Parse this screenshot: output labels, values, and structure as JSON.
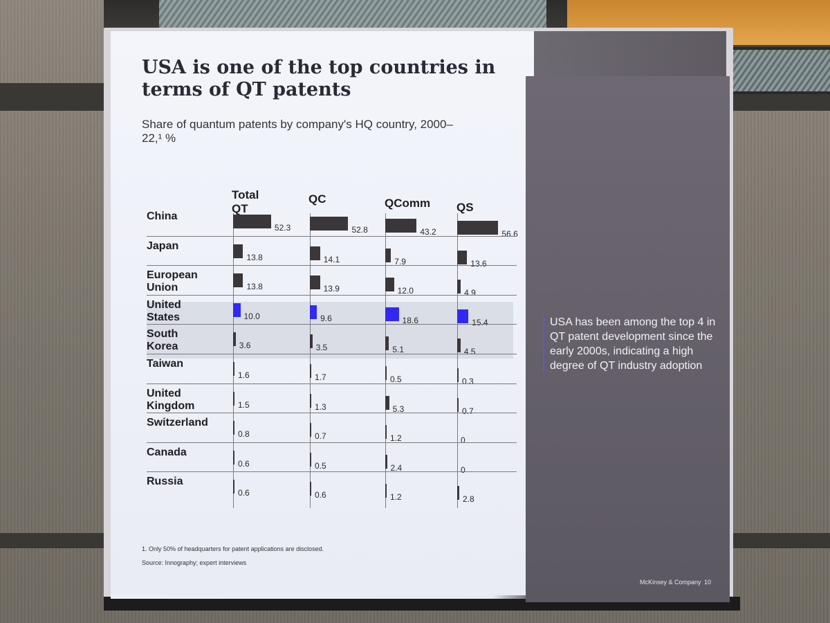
{
  "slide": {
    "title": "USA is one of the top countries in terms of QT patents",
    "subtitle": "Share of quantum patents by company's HQ country, 2000–22,¹ %",
    "footnote": "1.   Only 50% of headquarters for patent applications are disclosed.",
    "source": "Source: Innography; expert interviews",
    "callout": "USA has been among the top 4 in QT patent development since the early 2000s, indicating a high degree of QT industry adoption",
    "brand": "McKinsey & Company",
    "page_number": "10"
  },
  "colors": {
    "bar_default": "#3b3638",
    "bar_highlight": "#3129f2",
    "highlight_band": "#c7cad4"
  },
  "chart_data": {
    "type": "bar",
    "title": "USA is one of the top countries in terms of QT patents",
    "subtitle": "Share of quantum patents by company's HQ country, 2000–22,¹ %",
    "categories": [
      "China",
      "Japan",
      "European Union",
      "United States",
      "South Korea",
      "Taiwan",
      "United Kingdom",
      "Switzerland",
      "Canada",
      "Russia"
    ],
    "highlight_category": "United States",
    "series": [
      {
        "name": "Total QT",
        "values": [
          52.3,
          13.8,
          13.8,
          10.0,
          3.6,
          1.6,
          1.5,
          0.8,
          0.6,
          0.6
        ],
        "labels": [
          "52.3",
          "13.8",
          "13.8",
          "10.0",
          "3.6",
          "1.6",
          "1.5",
          "0.8",
          "0.6",
          "0.6"
        ]
      },
      {
        "name": "QC",
        "values": [
          52.8,
          14.1,
          13.9,
          9.6,
          3.5,
          1.7,
          1.3,
          0.7,
          0.5,
          0.6
        ],
        "labels": [
          "52.8",
          "14.1",
          "13.9",
          "9.6",
          "3.5",
          "1.7",
          "1.3",
          "0.7",
          "0.5",
          "0.6"
        ]
      },
      {
        "name": "QComm",
        "values": [
          43.2,
          7.9,
          12.0,
          18.6,
          5.1,
          0.5,
          5.3,
          1.2,
          2.4,
          1.2
        ],
        "labels": [
          "43.2",
          "7.9",
          "12.0",
          "18.6",
          "5.1",
          "0.5",
          "5.3",
          "1.2",
          "2.4",
          "1.2"
        ]
      },
      {
        "name": "QS",
        "values": [
          56.6,
          13.6,
          4.9,
          15.4,
          4.5,
          0.3,
          0.7,
          0,
          0,
          2.8
        ],
        "labels": [
          "56.6",
          "13.6",
          "4.9",
          "15.4",
          "4.5",
          "0.3",
          "0.7",
          "0",
          "0",
          "2.8"
        ]
      }
    ],
    "unit": "%",
    "xlim": [
      0,
      60
    ],
    "grid": false,
    "legend": "none"
  }
}
